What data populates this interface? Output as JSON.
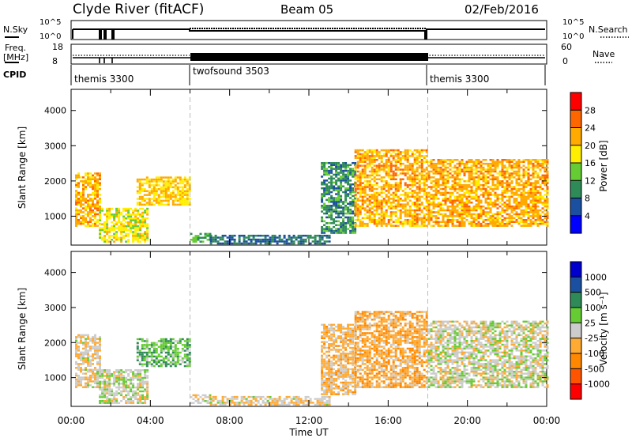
{
  "header": {
    "station": "Clyde River (fitACF)",
    "beam": "Beam 05",
    "date": "02/Feb/2016"
  },
  "strips": {
    "nsky_label": "N.Sky",
    "nsky_ticks": [
      "10^5",
      "10^0"
    ],
    "nsearch_label": "N.Search",
    "nsearch_ticks": [
      "10^5",
      "10^0"
    ],
    "freq_label": "Freq.",
    "freq_unit": "[MHz]",
    "freq_ticks": [
      "18",
      "8"
    ],
    "nave_label": "Nave",
    "nave_ticks": [
      "60",
      "0"
    ],
    "cpid_label": "CPID",
    "modes": [
      {
        "name": "themis 3300",
        "start_h": 0,
        "end_h": 6
      },
      {
        "name": "twofsound 3503",
        "start_h": 6,
        "end_h": 18
      },
      {
        "name": "themis 3300",
        "start_h": 18,
        "end_h": 24
      }
    ]
  },
  "time_axis": {
    "label": "Time UT",
    "ticks": [
      "00:00",
      "04:00",
      "08:00",
      "12:00",
      "16:00",
      "20:00",
      "00:00"
    ],
    "range_h": [
      0,
      24
    ]
  },
  "chart_data": [
    {
      "type": "heatmap",
      "ylabel": "Slant Range [km]",
      "ylim": [
        180,
        4600
      ],
      "yticks": [
        1000,
        2000,
        3000,
        4000
      ],
      "xlim_hours": [
        0,
        24
      ],
      "colorbar": {
        "label": "Power [dB]",
        "ticks": [
          "28",
          "24",
          "20",
          "16",
          "12",
          "8",
          "4"
        ],
        "range": [
          0,
          32
        ],
        "colors": [
          "#0000ff",
          "#1b4fa0",
          "#2e8b57",
          "#66cc33",
          "#ffee00",
          "#ffaa00",
          "#ff6600",
          "#ff0000"
        ]
      },
      "regions": [
        {
          "t0": 0.2,
          "t1": 1.4,
          "r0": 700,
          "r1": 2200,
          "level": 22
        },
        {
          "t0": 1.4,
          "t1": 3.8,
          "r0": 250,
          "r1": 1200,
          "level": 18
        },
        {
          "t0": 3.3,
          "t1": 6.0,
          "r0": 1300,
          "r1": 2100,
          "level": 20
        },
        {
          "t0": 6.0,
          "t1": 7.0,
          "r0": 250,
          "r1": 500,
          "level": 12
        },
        {
          "t0": 7.0,
          "t1": 13.0,
          "r0": 200,
          "r1": 450,
          "level": 8
        },
        {
          "t0": 12.6,
          "t1": 14.3,
          "r0": 500,
          "r1": 2500,
          "level": 10
        },
        {
          "t0": 14.3,
          "t1": 18.0,
          "r0": 700,
          "r1": 2900,
          "level": 22
        },
        {
          "t0": 18.0,
          "t1": 24.0,
          "r0": 700,
          "r1": 2600,
          "level": 22
        }
      ]
    },
    {
      "type": "heatmap",
      "ylabel": "Slant Range [km]",
      "ylim": [
        180,
        4600
      ],
      "yticks": [
        1000,
        2000,
        3000,
        4000
      ],
      "xlim_hours": [
        0,
        24
      ],
      "colorbar": {
        "label": "Velocity [m s⁻¹]",
        "ticks": [
          "1000",
          "500",
          "100",
          "25",
          "-25",
          "-100",
          "-500",
          "-1000"
        ],
        "range": [
          -1200,
          1200
        ],
        "colors": [
          "#ff0000",
          "#ff5500",
          "#ff8800",
          "#ffaa33",
          "#cccccc",
          "#66cc33",
          "#2e8b57",
          "#1b4fa0",
          "#0000cc"
        ]
      },
      "regions": [
        {
          "t0": 0.2,
          "t1": 1.4,
          "r0": 700,
          "r1": 2200,
          "level": -100
        },
        {
          "t0": 1.4,
          "t1": 3.8,
          "r0": 250,
          "r1": 1200,
          "level": 50
        },
        {
          "t0": 3.3,
          "t1": 6.0,
          "r0": 1300,
          "r1": 2100,
          "level": 300
        },
        {
          "t0": 6.0,
          "t1": 7.0,
          "r0": 250,
          "r1": 500,
          "level": -100
        },
        {
          "t0": 7.0,
          "t1": 13.0,
          "r0": 200,
          "r1": 450,
          "level": -100
        },
        {
          "t0": 12.6,
          "t1": 14.3,
          "r0": 500,
          "r1": 2500,
          "level": -200
        },
        {
          "t0": 14.3,
          "t1": 18.0,
          "r0": 700,
          "r1": 2900,
          "level": -300
        },
        {
          "t0": 18.0,
          "t1": 24.0,
          "r0": 700,
          "r1": 2600,
          "level": 0
        }
      ]
    }
  ]
}
